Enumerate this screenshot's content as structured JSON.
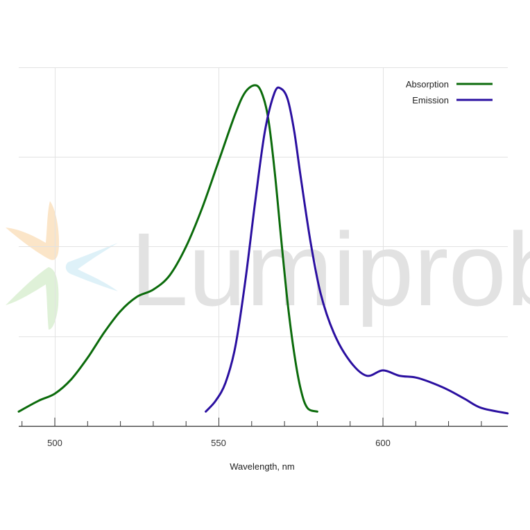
{
  "chart_data": {
    "type": "line",
    "title": "",
    "xlabel": "Wavelength, nm",
    "ylabel": "",
    "xlim": [
      489,
      638
    ],
    "ylim": [
      0,
      1.0
    ],
    "grid": true,
    "legend_position": "top-right",
    "x_ticks": [
      500,
      550,
      600
    ],
    "x_tick_labels": [
      "500",
      "550",
      "600"
    ],
    "y_ticks_gridlines": [
      0.25,
      0.5,
      0.75,
      1.0
    ],
    "series": [
      {
        "name": "Absorption",
        "color": "#0b6b0b",
        "x": [
          489,
          495,
          500,
          505,
          510,
          515,
          520,
          525,
          530,
          535,
          540,
          545,
          550,
          555,
          558,
          561,
          563,
          565,
          567,
          569,
          571,
          573,
          575,
          577,
          580
        ],
        "y": [
          0.04,
          0.07,
          0.09,
          0.13,
          0.19,
          0.26,
          0.32,
          0.36,
          0.38,
          0.42,
          0.5,
          0.61,
          0.74,
          0.87,
          0.93,
          0.95,
          0.93,
          0.86,
          0.71,
          0.52,
          0.34,
          0.2,
          0.1,
          0.05,
          0.04
        ]
      },
      {
        "name": "Emission",
        "color": "#2a0fa0",
        "x": [
          546,
          549,
          552,
          555,
          558,
          561,
          564,
          567,
          569,
          571,
          573,
          575,
          578,
          581,
          585,
          590,
          595,
          600,
          605,
          610,
          615,
          620,
          625,
          630,
          638
        ],
        "y": [
          0.04,
          0.07,
          0.12,
          0.22,
          0.4,
          0.62,
          0.82,
          0.93,
          0.94,
          0.91,
          0.82,
          0.69,
          0.51,
          0.37,
          0.26,
          0.18,
          0.14,
          0.155,
          0.14,
          0.135,
          0.12,
          0.1,
          0.075,
          0.05,
          0.035
        ]
      }
    ]
  },
  "legend": {
    "items": [
      {
        "label": "Absorption",
        "color": "#0b6b0b"
      },
      {
        "label": "Emission",
        "color": "#2a0fa0"
      }
    ]
  },
  "axis": {
    "x_title": "Wavelength, nm",
    "x_labels": [
      "500",
      "550",
      "600"
    ]
  },
  "watermark": {
    "text": "Lumiprobe",
    "logo_colors": [
      "#fbe2c2",
      "#dcefd4",
      "#dcf0f8"
    ]
  }
}
